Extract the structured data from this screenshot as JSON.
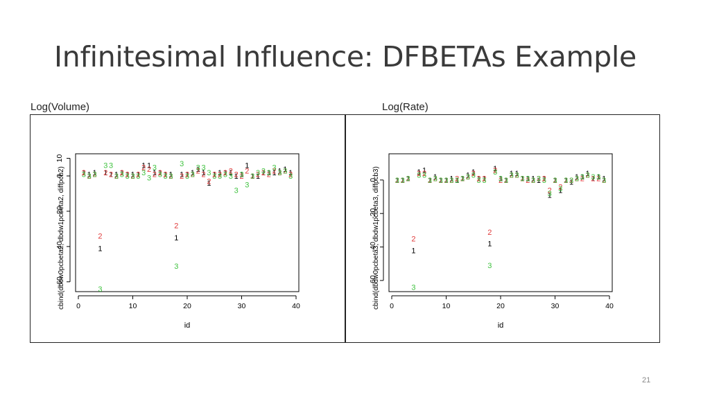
{
  "title": "Infinitesimal Influence: DFBETAs Example",
  "page_number": "21",
  "colors": {
    "series1": "#000000",
    "series2": "#e03a3a",
    "series3": "#3fc23f"
  },
  "chart_data": [
    {
      "type": "scatter",
      "title": "Log(Volume)",
      "xlabel": "id",
      "ylabel": "cbind(dbdw0pcbeta2, dbdw1pcbeta2, diffpcb2)",
      "xlim": [
        0,
        40
      ],
      "ylim": [
        -64,
        11
      ],
      "x_ticks": [
        0,
        10,
        20,
        30,
        40
      ],
      "y_ticks": [
        10,
        0,
        -20,
        -40,
        -60
      ],
      "grid": false,
      "marker": "series index digit",
      "x": [
        1,
        2,
        3,
        4,
        5,
        6,
        7,
        8,
        9,
        10,
        11,
        12,
        13,
        14,
        15,
        16,
        17,
        18,
        19,
        20,
        21,
        22,
        23,
        24,
        25,
        26,
        27,
        28,
        29,
        30,
        31,
        32,
        33,
        34,
        35,
        36,
        37,
        38,
        39
      ],
      "series": [
        {
          "name": "1",
          "values": [
            2,
            1,
            2,
            -41,
            2,
            1,
            1,
            2,
            1,
            1,
            1,
            6,
            6,
            2,
            2,
            1,
            1,
            -35,
            1,
            1,
            2,
            4,
            2,
            -4,
            1,
            2,
            2,
            2,
            0,
            1,
            6,
            0,
            0,
            2,
            2,
            2,
            3,
            4,
            2
          ]
        },
        {
          "name": "2",
          "values": [
            2,
            0,
            1,
            -34,
            2,
            1,
            0,
            2,
            1,
            0,
            1,
            5,
            4,
            1,
            2,
            1,
            0,
            -28,
            0,
            1,
            1,
            3,
            1,
            -3,
            1,
            1,
            2,
            3,
            1,
            0,
            3,
            0,
            1,
            2,
            1,
            3,
            2,
            3,
            1
          ]
        },
        {
          "name": "3",
          "values": [
            1,
            0,
            1,
            -64,
            6,
            6,
            0,
            1,
            0,
            0,
            0,
            2,
            -1,
            5,
            1,
            0,
            0,
            -51,
            7,
            0,
            1,
            5,
            5,
            2,
            0,
            0,
            1,
            0,
            -8,
            1,
            -5,
            0,
            2,
            3,
            2,
            5,
            2,
            3,
            0
          ]
        }
      ]
    },
    {
      "type": "scatter",
      "title": "Log(Rate)",
      "xlabel": "id",
      "ylabel": "cbind(dbdw0pcbeta3, dbdw1pcbeta3, diffpcb3)",
      "xlim": [
        0,
        40
      ],
      "ylim": [
        -65,
        14
      ],
      "x_ticks": [
        0,
        10,
        20,
        30,
        40
      ],
      "y_ticks": [
        0,
        -20,
        -40,
        -60
      ],
      "grid": false,
      "marker": "series index digit",
      "x": [
        1,
        2,
        3,
        4,
        5,
        6,
        7,
        8,
        9,
        10,
        11,
        12,
        13,
        14,
        15,
        16,
        17,
        18,
        19,
        20,
        21,
        22,
        23,
        24,
        25,
        26,
        27,
        28,
        29,
        30,
        31,
        32,
        33,
        34,
        35,
        36,
        37,
        38,
        39
      ],
      "series": [
        {
          "name": "1",
          "values": [
            0,
            0,
            1,
            -42,
            5,
            6,
            0,
            2,
            0,
            0,
            1,
            0,
            1,
            3,
            5,
            1,
            1,
            -38,
            7,
            1,
            0,
            4,
            4,
            1,
            1,
            1,
            0,
            1,
            -9,
            0,
            -6,
            0,
            -1,
            2,
            2,
            4,
            1,
            2,
            1
          ]
        },
        {
          "name": "2",
          "values": [
            0,
            0,
            1,
            -35,
            4,
            4,
            0,
            1,
            0,
            0,
            0,
            1,
            1,
            2,
            4,
            1,
            1,
            -31,
            6,
            0,
            0,
            3,
            3,
            1,
            0,
            0,
            1,
            1,
            -6,
            0,
            -4,
            0,
            0,
            1,
            1,
            3,
            1,
            1,
            0
          ]
        },
        {
          "name": "3",
          "values": [
            0,
            0,
            1,
            -64,
            3,
            3,
            0,
            1,
            0,
            0,
            0,
            0,
            1,
            2,
            3,
            0,
            0,
            -51,
            5,
            1,
            0,
            3,
            3,
            1,
            1,
            0,
            1,
            0,
            -8,
            0,
            -5,
            0,
            0,
            1,
            2,
            3,
            2,
            2,
            0
          ]
        }
      ]
    }
  ]
}
